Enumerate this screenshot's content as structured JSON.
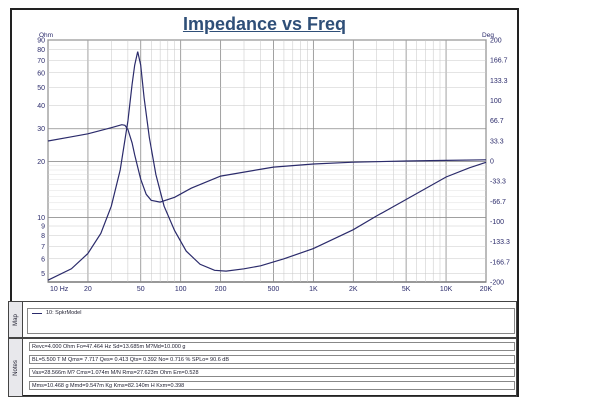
{
  "chart_data": {
    "type": "line",
    "title": "Impedance vs Freq",
    "x_scale": "log",
    "xlim": [
      10,
      20000
    ],
    "x_ticks": [
      "10 Hz",
      "20",
      "50",
      "100",
      "200",
      "500",
      "1K",
      "2K",
      "5K",
      "10K",
      "20K"
    ],
    "y_left_unit": "Ohm",
    "y_left_scale": "log",
    "ylim_left": [
      4.5,
      90
    ],
    "y_left_ticks": [
      "90",
      "80",
      "70",
      "60",
      "50",
      "40",
      "30",
      "20",
      "10",
      "9",
      "8",
      "7",
      "6",
      "5"
    ],
    "y_right_unit": "Deg",
    "ylim_right": [
      -200,
      200
    ],
    "y_right_ticks": [
      "200",
      "166.7",
      "133.3",
      "100",
      "66.7",
      "33.3",
      "0",
      "-33.3",
      "-66.7",
      "-100",
      "-133.3",
      "-166.7",
      "-200"
    ],
    "grid": true,
    "series": [
      {
        "axis": "left",
        "x": [
          10,
          15,
          20,
          25,
          30,
          35,
          40,
          43,
          45,
          47.46,
          50,
          53,
          58,
          65,
          75,
          90,
          110,
          140,
          180,
          220,
          300,
          400,
          600,
          1000,
          2000,
          3000,
          5000,
          10000,
          15000,
          20000
        ],
        "y": [
          4.6,
          5.3,
          6.4,
          8.2,
          11.5,
          18,
          33,
          52,
          66,
          78,
          66,
          44,
          27,
          17,
          11.5,
          8.5,
          6.6,
          5.6,
          5.2,
          5.15,
          5.3,
          5.5,
          6.0,
          6.8,
          8.6,
          10.2,
          12.5,
          16.5,
          18.5,
          19.8
        ]
      },
      {
        "axis": "right",
        "x": [
          10,
          15,
          20,
          30,
          36,
          38,
          40,
          43,
          45,
          47.46,
          50,
          55,
          60,
          70,
          90,
          120,
          200,
          500,
          1000,
          2000,
          5000,
          10000,
          20000
        ],
        "y": [
          33,
          40,
          45,
          55,
          60,
          59,
          52,
          30,
          10,
          -10,
          -30,
          -55,
          -65,
          -68,
          -60,
          -45,
          -25,
          -10,
          -5,
          -2,
          0,
          1,
          2
        ]
      }
    ]
  },
  "map": {
    "side_label": "Map",
    "legend_label": "10: SpkrModel"
  },
  "notes": {
    "side_label": "Notes",
    "lines": [
      "Revc=4.000 Ohm  Fo=47.464 Hz  Sd=13.685m M?Md=10.000 g",
      "BL=5.500 T M  Qms= 7.717  Qes= 0.413  Qts= 0.392  No= 0.716 %  SPLo= 90.6 dB",
      "Vas=28.566m M? Cms=1.074m M/N  Rms=27.623m Ohm  Em=0.528",
      "Mms=10.468 g  Mmd=9.547m Kg  Kms=82.140m H  Kxm=0.398"
    ]
  }
}
